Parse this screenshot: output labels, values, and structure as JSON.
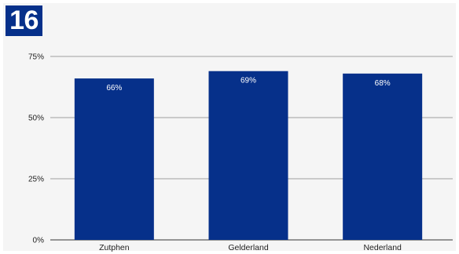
{
  "badge": {
    "number": "16"
  },
  "colors": {
    "bar": "#06308a",
    "badge": "#06308a",
    "grid": "#9e9e9e",
    "background": "#f5f5f5"
  },
  "chart_data": {
    "type": "bar",
    "title": "",
    "xlabel": "",
    "ylabel": "",
    "categories": [
      "Zutphen",
      "Gelderland",
      "Nederland"
    ],
    "values": [
      66,
      69,
      68
    ],
    "data_labels": [
      "66%",
      "69%",
      "68%"
    ],
    "ylim": [
      0,
      75
    ],
    "yticks": [
      0,
      25,
      50,
      75
    ],
    "ytick_labels": [
      "0%",
      "25%",
      "50%",
      "75%"
    ],
    "grid": true,
    "legend": "none"
  }
}
